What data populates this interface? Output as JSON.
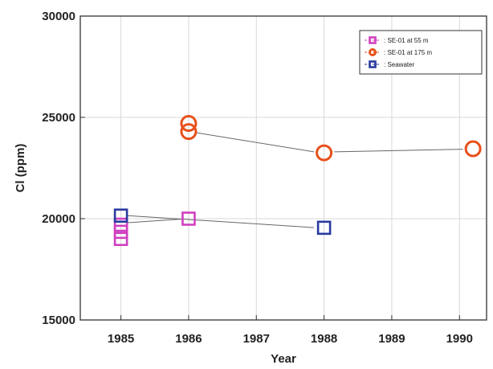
{
  "chart_data": {
    "type": "scatter",
    "xlabel": "Year",
    "ylabel": "Cl (ppm)",
    "xlim": [
      1984.4,
      1990.4
    ],
    "ylim": [
      15000,
      30000
    ],
    "x_ticks": [
      "1985",
      "1986",
      "1987",
      "1988",
      "1989",
      "1990"
    ],
    "y_ticks": [
      "15000",
      "20000",
      "25000",
      "30000"
    ],
    "grid": true,
    "legend_position": "top-right",
    "series": [
      {
        "name": ": SE-01 at 55 m",
        "marker": "square",
        "color": "#d040c0",
        "points": [
          [
            1985,
            19000
          ],
          [
            1985,
            19350
          ],
          [
            1985,
            19700
          ],
          [
            1986,
            20000
          ]
        ]
      },
      {
        "name": ": SE-01 at 175 m",
        "marker": "circle",
        "color": "#e8501a",
        "points": [
          [
            1986,
            24700
          ],
          [
            1986,
            24300
          ],
          [
            1988,
            23250
          ],
          [
            1990.2,
            23450
          ]
        ]
      },
      {
        "name": ": Seawater",
        "marker": "square",
        "color": "#2a3aa0",
        "points": [
          [
            1985,
            20150
          ],
          [
            1988,
            19550
          ]
        ]
      }
    ],
    "connectors": [
      [
        [
          1986.1,
          24250
        ],
        [
          1987.85,
          23300
        ]
      ],
      [
        [
          1988.15,
          23300
        ],
        [
          1990.05,
          23430
        ]
      ],
      [
        [
          1985.1,
          19800
        ],
        [
          1985.9,
          19980
        ]
      ],
      [
        [
          1985.1,
          20150
        ],
        [
          1987.85,
          19560
        ]
      ]
    ]
  }
}
